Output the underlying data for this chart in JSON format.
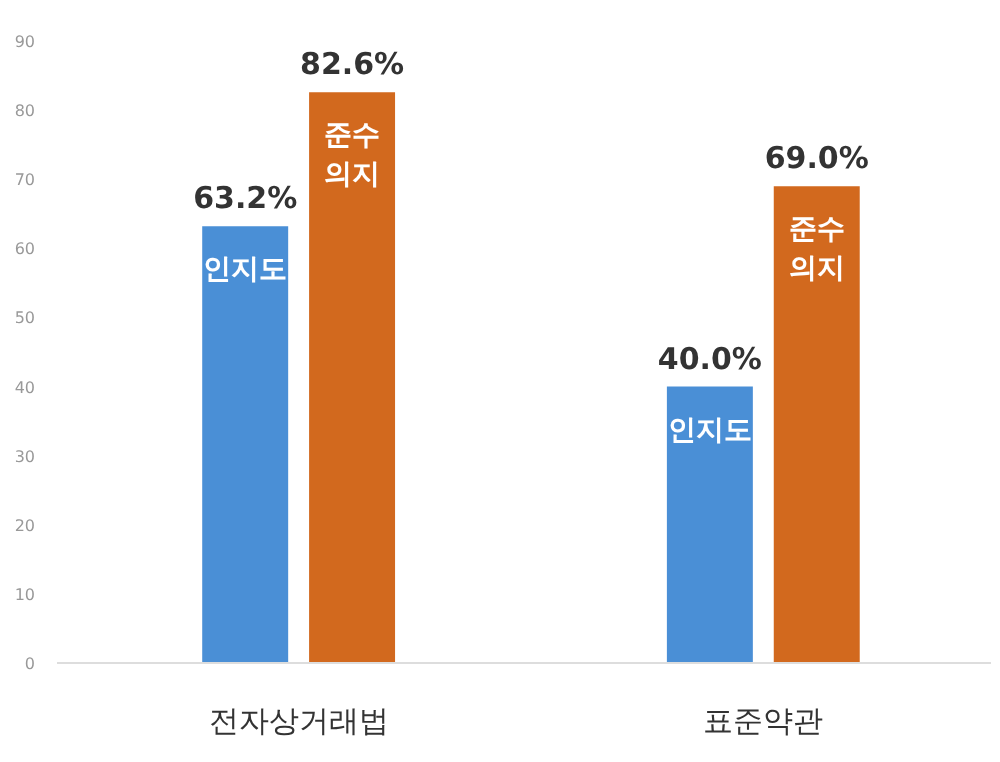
{
  "chart_data": {
    "type": "bar",
    "categories": [
      "전자상거래법",
      "표준약관"
    ],
    "series": [
      {
        "name": "인지도",
        "color": "#4a8fd6",
        "values": [
          63.2,
          40.0
        ],
        "value_labels": [
          "63.2%",
          "40.0%"
        ]
      },
      {
        "name": "준수\n의지",
        "color": "#d2691e",
        "values": [
          82.6,
          69.0
        ],
        "value_labels": [
          "82.6%",
          "69.0%"
        ]
      }
    ],
    "ylim": [
      0,
      90
    ],
    "yticks": [
      0,
      10,
      20,
      30,
      40,
      50,
      60,
      70,
      80,
      90
    ],
    "grid": false
  }
}
